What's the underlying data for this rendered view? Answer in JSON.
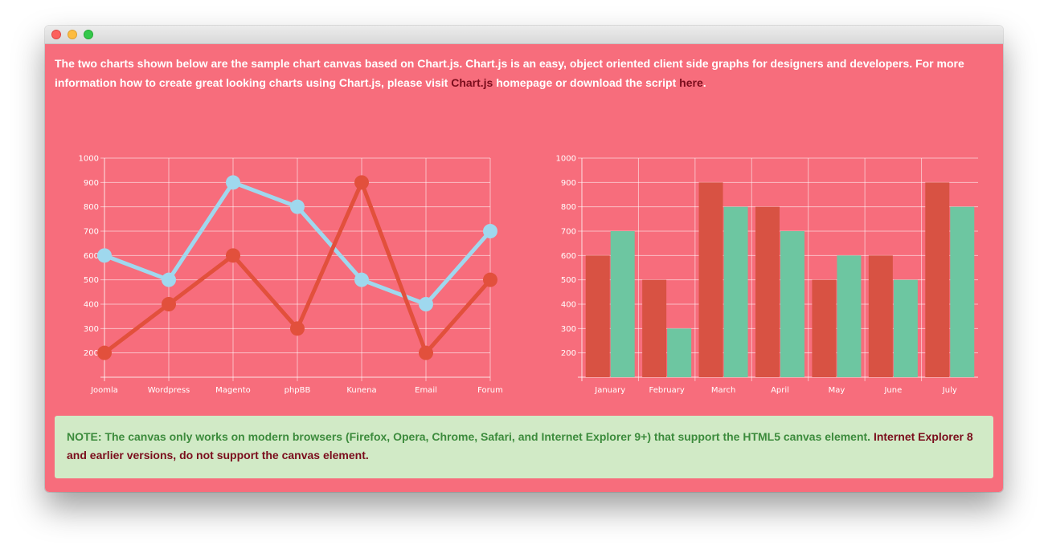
{
  "window": {
    "buttons": {
      "close": "close",
      "minimize": "minimize",
      "maximize": "maximize"
    }
  },
  "intro": {
    "text_before": "The two charts shown below are the sample chart canvas based on Chart.js. Chart.js is an easy, object oriented client side graphs for designers and developers. For more information how to create great looking charts using Chart.js, please visit ",
    "link_chartjs": "Chart.js",
    "text_middle": " homepage or download the script ",
    "link_here": "here",
    "text_after": "."
  },
  "note": {
    "green_text": "NOTE: The canvas only works on modern browsers (Firefox, Opera, Chrome, Safari, and Internet Explorer 9+) that support the HTML5 canvas element. ",
    "red_text": "Internet Explorer 8 and earlier versions, do not support the canvas element."
  },
  "colors": {
    "background": "#f76d7c",
    "grid": "#ffffff",
    "series_red": "#e2503c",
    "series_blue": "#9fd8ee",
    "bar_red": "#d85243",
    "bar_green": "#6dc6a1",
    "note_bg": "#d1eac6"
  },
  "chart_data": [
    {
      "type": "line",
      "categories": [
        "Joomla",
        "Wordpress",
        "Magento",
        "phpBB",
        "Kunena",
        "Email",
        "Forum"
      ],
      "series": [
        {
          "color": "#9fd8ee",
          "values": [
            600,
            500,
            900,
            800,
            500,
            400,
            700
          ]
        },
        {
          "color": "#e2503c",
          "values": [
            200,
            400,
            600,
            300,
            900,
            200,
            500
          ]
        }
      ],
      "y_ticks": [
        200,
        300,
        400,
        500,
        600,
        700,
        800,
        900,
        1000
      ],
      "ylim": [
        100,
        1000
      ],
      "grid": true
    },
    {
      "type": "bar",
      "categories": [
        "January",
        "February",
        "March",
        "April",
        "May",
        "June",
        "July"
      ],
      "series": [
        {
          "color": "#d85243",
          "values": [
            600,
            500,
            900,
            800,
            500,
            600,
            900
          ]
        },
        {
          "color": "#6dc6a1",
          "values": [
            700,
            300,
            800,
            700,
            600,
            500,
            800
          ]
        }
      ],
      "y_ticks": [
        200,
        300,
        400,
        500,
        600,
        700,
        800,
        900,
        1000
      ],
      "ylim": [
        100,
        1000
      ],
      "grid": true
    }
  ]
}
